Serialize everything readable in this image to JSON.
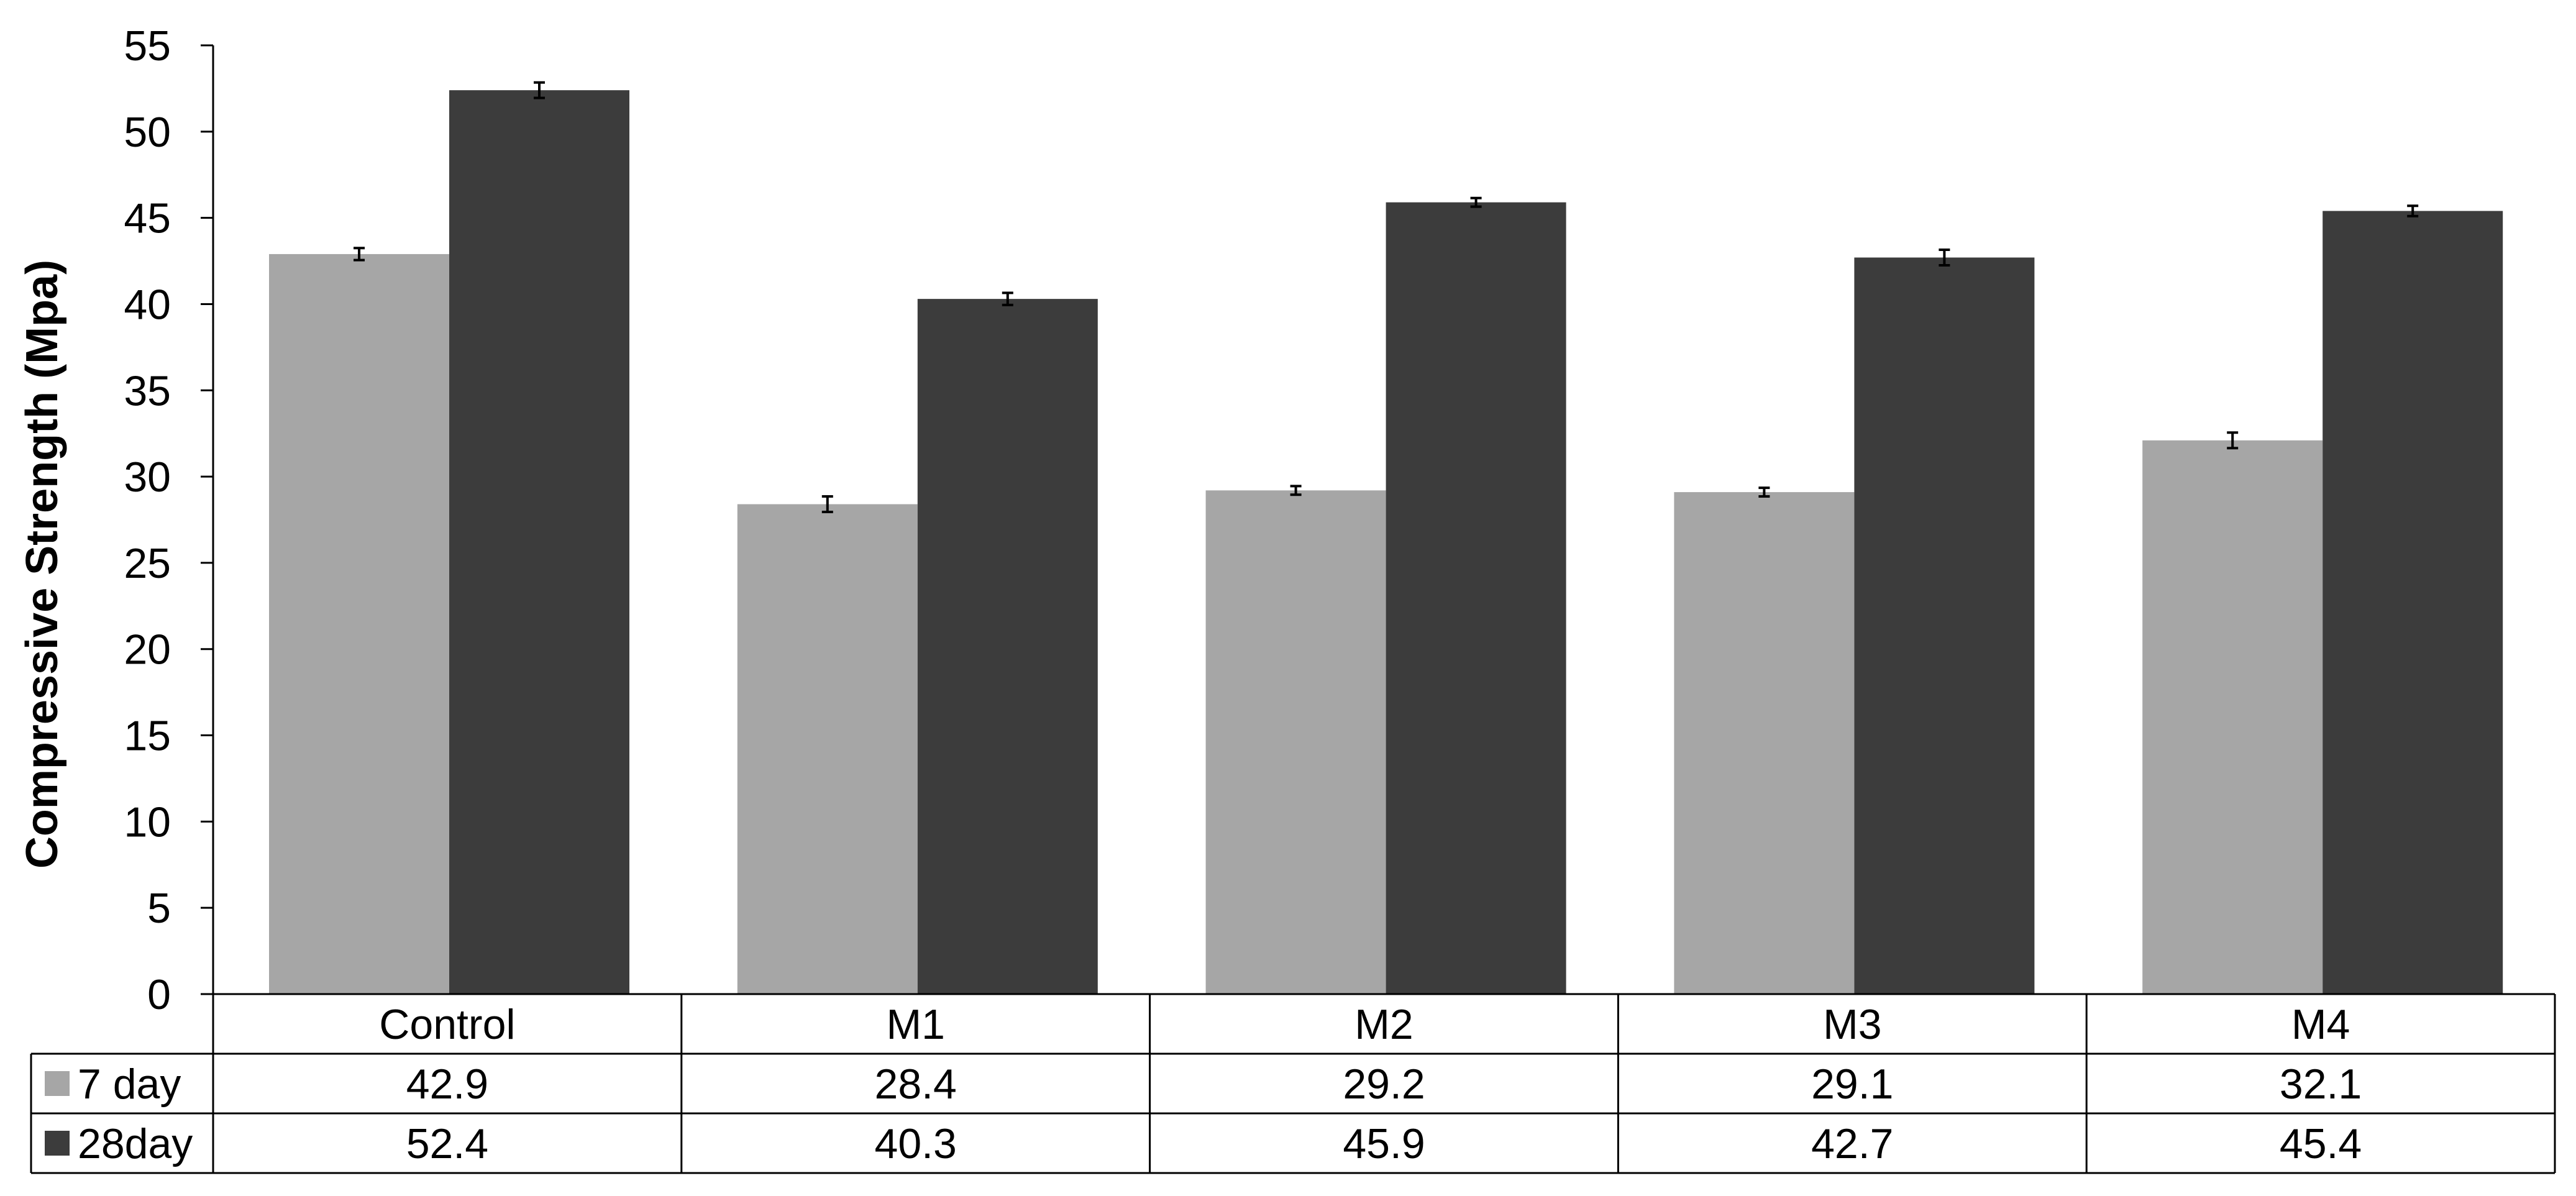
{
  "chart_data": {
    "type": "bar",
    "ylabel": "Compressive Strength (Mpa)",
    "xlabel": "",
    "ylim": [
      0,
      55
    ],
    "ytick_step": 5,
    "categories": [
      "Control",
      "M1",
      "M2",
      "M3",
      "M4"
    ],
    "series": [
      {
        "name": "7 day",
        "color": "#a6a6a6",
        "values": [
          42.9,
          28.4,
          29.2,
          29.1,
          32.1
        ],
        "errors": [
          0.35,
          0.45,
          0.25,
          0.25,
          0.45
        ],
        "labels": [
          "42.9",
          "28.4",
          "29.2",
          "29.1",
          "32.1"
        ]
      },
      {
        "name": "28day",
        "color": "#3c3c3c",
        "values": [
          52.4,
          40.3,
          45.9,
          42.7,
          45.4
        ],
        "errors": [
          0.45,
          0.35,
          0.25,
          0.45,
          0.3
        ],
        "labels": [
          "52.4",
          "40.3",
          "45.9",
          "42.7",
          "45.4"
        ]
      }
    ],
    "grid": false,
    "data_table": true,
    "legend": "in-data-table"
  }
}
